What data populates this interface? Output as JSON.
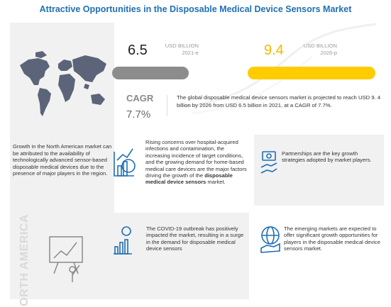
{
  "title": "Attractive Opportunities in the Disposable Medical Device Sensors Market",
  "market_2021": {
    "value": "6.5",
    "unit": "USD BILLION",
    "year": "2021-e",
    "bar_color": "#8c8c8c"
  },
  "market_2026": {
    "value": "9.4",
    "unit": "USD BILLION",
    "year": "2026-p",
    "bar_color": "#ffcc00"
  },
  "cagr": {
    "label": "CAGR",
    "value": "7.7%"
  },
  "summary": "The global disposable medical device sensors market is projected to reach USD 9. 4 billion by 2026 from USD 6.5 billion in 2021, at a CAGR of 7.7%.",
  "region": {
    "label": "NORTH AMERICA",
    "text": "Growth in the North American market can be attributed to the availability of technologically advanced sensor-based disposable medical devices due to the presence of major players in the region."
  },
  "insights": {
    "drivers_1": "Rising concerns over hospital-acquired infections and contamination, the increasing incidence of target conditions, and the growing demand for home-based medical care devices are the major factors driving the growth of the",
    "drivers_bold": "disposable medical device sensors",
    "drivers_2": "market.",
    "partnerships": "Partnerships are the key growth strategies adopted by market players.",
    "covid": "The COVID-19 outbreak has positively impacted the market, resulting in a surge in the demand for disposable medical device sensors",
    "emerging": "The emerging markets are expected to offer significant growth opportunities for players in the disposable medical device sensors market."
  },
  "colors": {
    "title": "#1f6fb5",
    "icon_blue": "#1f6fb5",
    "map": "#5b6478"
  },
  "icons": [
    "world-map-icon",
    "analysis-board-icon",
    "growth-chart-icon",
    "handshake-money-icon",
    "rising-bars-icon",
    "globe-hand-icon"
  ]
}
